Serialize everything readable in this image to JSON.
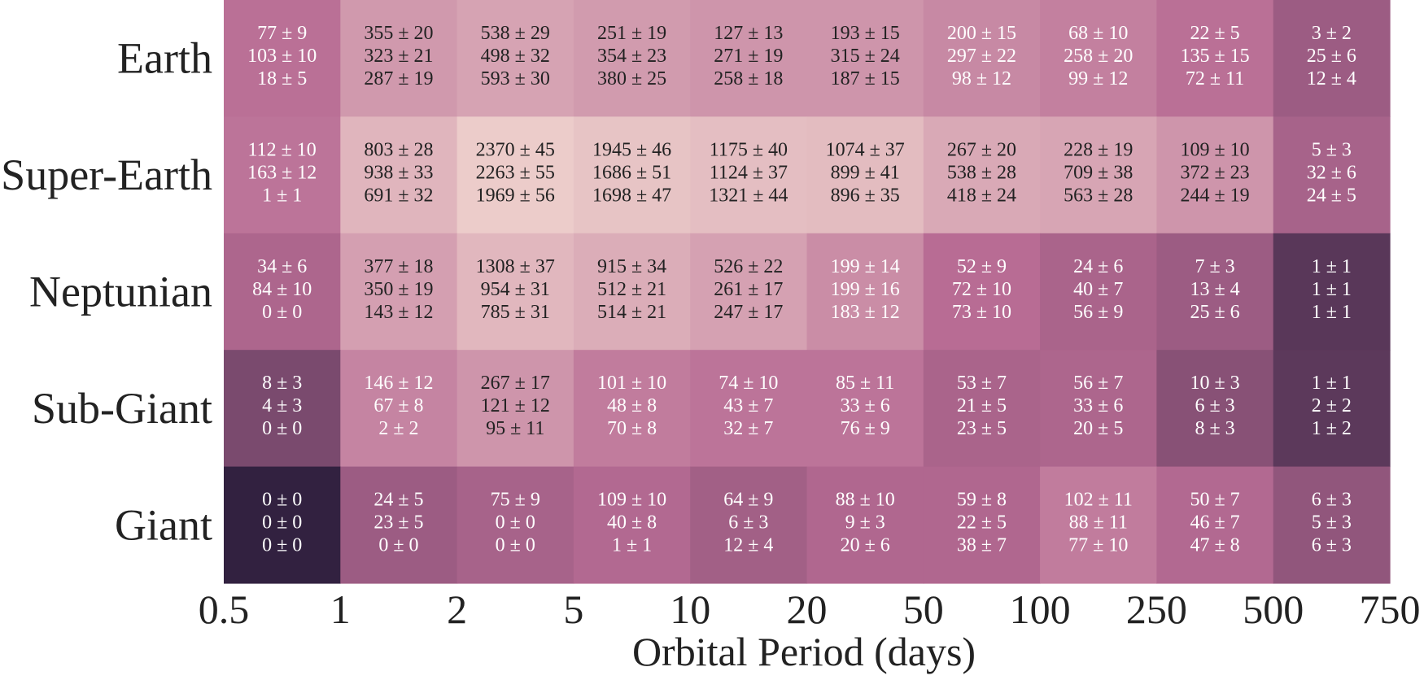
{
  "chart_data": {
    "type": "heatmap",
    "title": "",
    "xlabel": "Orbital Period (days)",
    "ylabel": "",
    "x_tick_labels": [
      "0.5",
      "1",
      "2",
      "5",
      "10",
      "20",
      "50",
      "100",
      "250",
      "500",
      "750"
    ],
    "rows": [
      "Earth",
      "Super-Earth",
      "Neptunian",
      "Sub-Giant",
      "Giant"
    ],
    "colormap": {
      "low": "#2c1e3d",
      "mid": "#b86c94",
      "high": "#efd2cd"
    },
    "cells": [
      [
        {
          "shade": 0.52,
          "lines": [
            "77 ± 9",
            "103 ± 10",
            "18 ± 5"
          ]
        },
        {
          "shade": 0.72,
          "lines": [
            "355 ± 20",
            "323 ± 21",
            "287 ± 19"
          ]
        },
        {
          "shade": 0.77,
          "lines": [
            "538 ± 29",
            "498 ± 32",
            "593 ± 30"
          ]
        },
        {
          "shade": 0.73,
          "lines": [
            "251 ± 19",
            "354 ± 23",
            "380 ± 25"
          ]
        },
        {
          "shade": 0.7,
          "lines": [
            "127 ± 13",
            "271 ± 19",
            "258 ± 18"
          ]
        },
        {
          "shade": 0.7,
          "lines": [
            "193 ± 15",
            "315 ± 24",
            "187 ± 15"
          ]
        },
        {
          "shade": 0.64,
          "lines": [
            "200 ± 15",
            "297 ± 22",
            "98 ± 12"
          ]
        },
        {
          "shade": 0.6,
          "lines": [
            "68 ± 10",
            "258 ± 20",
            "99 ± 12"
          ]
        },
        {
          "shade": 0.52,
          "lines": [
            "22 ± 5",
            "135 ± 15",
            "72 ± 11"
          ]
        },
        {
          "shade": 0.4,
          "lines": [
            "3 ± 2",
            "25 ± 6",
            "12 ± 4"
          ]
        }
      ],
      [
        {
          "shade": 0.54,
          "lines": [
            "112 ± 10",
            "163 ± 12",
            "1 ± 1"
          ]
        },
        {
          "shade": 0.86,
          "lines": [
            "803 ± 28",
            "938 ± 33",
            "691 ± 32"
          ]
        },
        {
          "shade": 0.97,
          "lines": [
            "2370 ± 45",
            "2263 ± 55",
            "1969 ± 56"
          ]
        },
        {
          "shade": 0.93,
          "lines": [
            "1945 ± 46",
            "1686 ± 51",
            "1698 ± 47"
          ]
        },
        {
          "shade": 0.9,
          "lines": [
            "1175 ± 40",
            "1124 ± 37",
            "1321 ± 44"
          ]
        },
        {
          "shade": 0.89,
          "lines": [
            "1074 ± 37",
            "899 ± 41",
            "896 ± 35"
          ]
        },
        {
          "shade": 0.8,
          "lines": [
            "267 ± 20",
            "538 ± 28",
            "418 ± 24"
          ]
        },
        {
          "shade": 0.78,
          "lines": [
            "228 ± 19",
            "709 ± 38",
            "563 ± 28"
          ]
        },
        {
          "shade": 0.7,
          "lines": [
            "109 ± 10",
            "372 ± 23",
            "244 ± 19"
          ]
        },
        {
          "shade": 0.44,
          "lines": [
            "5 ± 3",
            "32 ± 6",
            "24 ± 5"
          ]
        }
      ],
      [
        {
          "shade": 0.46,
          "lines": [
            "34 ± 6",
            "84 ± 10",
            "0 ± 0"
          ]
        },
        {
          "shade": 0.75,
          "lines": [
            "377 ± 18",
            "350 ± 19",
            "143 ± 12"
          ]
        },
        {
          "shade": 0.87,
          "lines": [
            "1308 ± 37",
            "954 ± 31",
            "785 ± 31"
          ]
        },
        {
          "shade": 0.82,
          "lines": [
            "915 ± 34",
            "512 ± 21",
            "514 ± 21"
          ]
        },
        {
          "shade": 0.76,
          "lines": [
            "526 ± 22",
            "261 ± 17",
            "247 ± 17"
          ]
        },
        {
          "shade": 0.66,
          "lines": [
            "199 ± 14",
            "199 ± 16",
            "183 ± 12"
          ]
        },
        {
          "shade": 0.5,
          "lines": [
            "52 ± 9",
            "72 ± 10",
            "73 ± 10"
          ]
        },
        {
          "shade": 0.45,
          "lines": [
            "24 ± 6",
            "40 ± 7",
            "56 ± 9"
          ]
        },
        {
          "shade": 0.4,
          "lines": [
            "7 ± 3",
            "13 ± 4",
            "25 ± 6"
          ]
        },
        {
          "shade": 0.16,
          "lines": [
            "1 ± 1",
            "1 ± 1",
            "1 ± 1"
          ]
        }
      ],
      [
        {
          "shade": 0.28,
          "lines": [
            "8 ± 3",
            "4 ± 3",
            "0 ± 0"
          ]
        },
        {
          "shade": 0.62,
          "lines": [
            "146 ± 12",
            "67 ± 8",
            "2 ± 2"
          ]
        },
        {
          "shade": 0.7,
          "lines": [
            "267 ± 17",
            "121 ± 12",
            "95 ± 11"
          ]
        },
        {
          "shade": 0.58,
          "lines": [
            "101 ± 10",
            "48 ± 8",
            "70 ± 8"
          ]
        },
        {
          "shade": 0.54,
          "lines": [
            "74 ± 10",
            "43 ± 7",
            "32 ± 7"
          ]
        },
        {
          "shade": 0.54,
          "lines": [
            "85 ± 11",
            "33 ± 6",
            "76 ± 9"
          ]
        },
        {
          "shade": 0.45,
          "lines": [
            "53 ± 7",
            "21 ± 5",
            "23 ± 5"
          ]
        },
        {
          "shade": 0.46,
          "lines": [
            "56 ± 7",
            "33 ± 6",
            "20 ± 5"
          ]
        },
        {
          "shade": 0.33,
          "lines": [
            "10 ± 3",
            "6 ± 3",
            "8 ± 3"
          ]
        },
        {
          "shade": 0.17,
          "lines": [
            "1 ± 1",
            "2 ± 2",
            "1 ± 2"
          ]
        }
      ],
      [
        {
          "shade": 0.02,
          "lines": [
            "0 ± 0",
            "0 ± 0",
            "0 ± 0"
          ]
        },
        {
          "shade": 0.4,
          "lines": [
            "24 ± 5",
            "23 ± 5",
            "0 ± 0"
          ]
        },
        {
          "shade": 0.44,
          "lines": [
            "75 ± 9",
            "0 ± 0",
            "0 ± 0"
          ]
        },
        {
          "shade": 0.48,
          "lines": [
            "109 ± 10",
            "40 ± 8",
            "1 ± 1"
          ]
        },
        {
          "shade": 0.42,
          "lines": [
            "64 ± 9",
            "6 ± 3",
            "12 ± 4"
          ]
        },
        {
          "shade": 0.47,
          "lines": [
            "88 ± 10",
            "9 ± 3",
            "20 ± 6"
          ]
        },
        {
          "shade": 0.47,
          "lines": [
            "59 ± 8",
            "22 ± 5",
            "38 ± 7"
          ]
        },
        {
          "shade": 0.58,
          "lines": [
            "102 ± 11",
            "88 ± 11",
            "77 ± 10"
          ]
        },
        {
          "shade": 0.48,
          "lines": [
            "50 ± 7",
            "46 ± 7",
            "47 ± 8"
          ]
        },
        {
          "shade": 0.36,
          "lines": [
            "6 ± 3",
            "5 ± 3",
            "6 ± 3"
          ]
        }
      ]
    ]
  }
}
